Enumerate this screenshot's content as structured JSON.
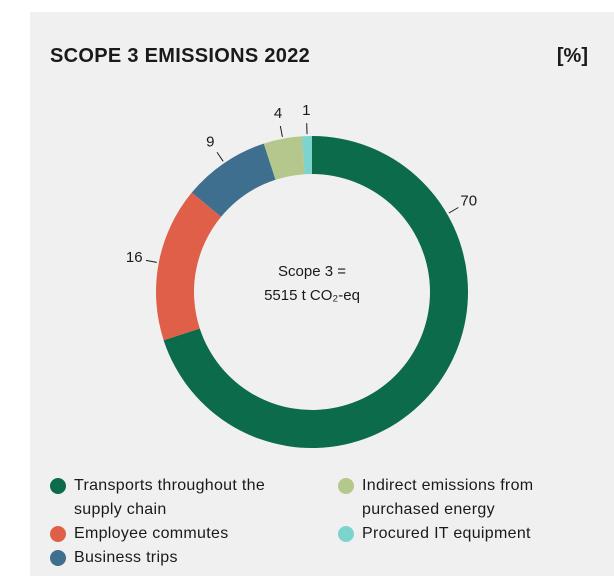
{
  "chart_data": {
    "type": "pie",
    "title": "SCOPE 3 EMISSIONS 2022",
    "unit_label": "[%]",
    "center_text": [
      "Scope 3 =",
      "5515 t CO₂-eq"
    ],
    "categories": [
      "Transports throughout the supply chain",
      "Employee commutes",
      "Business trips",
      "Indirect emissions from purchased energy",
      "Procured IT equipment"
    ],
    "values": [
      70,
      16,
      9,
      4,
      1
    ],
    "colors": [
      "#0b6b4a",
      "#e05f48",
      "#3e6f8e",
      "#b4c78c",
      "#7dd4cf"
    ],
    "donut": true
  }
}
